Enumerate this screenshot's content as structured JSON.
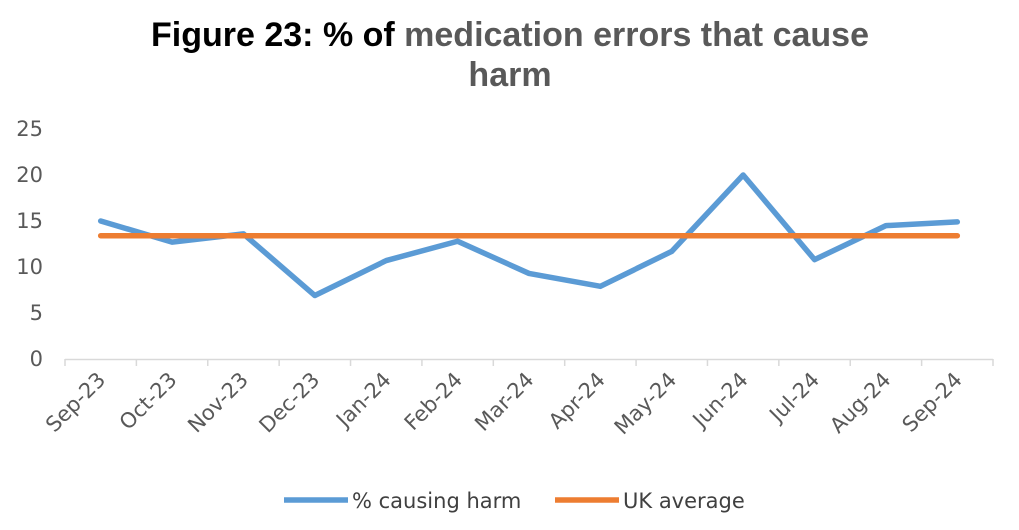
{
  "chart_data": {
    "type": "line",
    "title": {
      "part1": "Figure 23: % of ",
      "part2": "medication errors that cause",
      "line2": "harm",
      "part1_color": "#000000",
      "part2_color": "#595959"
    },
    "categories": [
      "Sep-23",
      "Oct-23",
      "Nov-23",
      "Dec-23",
      "Jan-24",
      "Feb-24",
      "Mar-24",
      "Apr-24",
      "May-24",
      "Jun-24",
      "Jul-24",
      "Aug-24",
      "Sep-24"
    ],
    "series": [
      {
        "name": "% causing harm",
        "color": "#5B9BD5",
        "values": [
          15,
          12.7,
          13.6,
          6.9,
          10.7,
          12.8,
          9.3,
          7.9,
          11.7,
          20,
          10.8,
          14.5,
          14.9
        ]
      },
      {
        "name": "UK average",
        "color": "#ED7D31",
        "values": [
          13.4,
          13.4,
          13.4,
          13.4,
          13.4,
          13.4,
          13.4,
          13.4,
          13.4,
          13.4,
          13.4,
          13.4,
          13.4
        ]
      }
    ],
    "ylim": [
      0,
      25
    ],
    "yticks": [
      "0",
      "5",
      "10",
      "15",
      "20",
      "25"
    ],
    "xlabel": "",
    "ylabel": "",
    "grid": false,
    "legend_position": "bottom"
  }
}
